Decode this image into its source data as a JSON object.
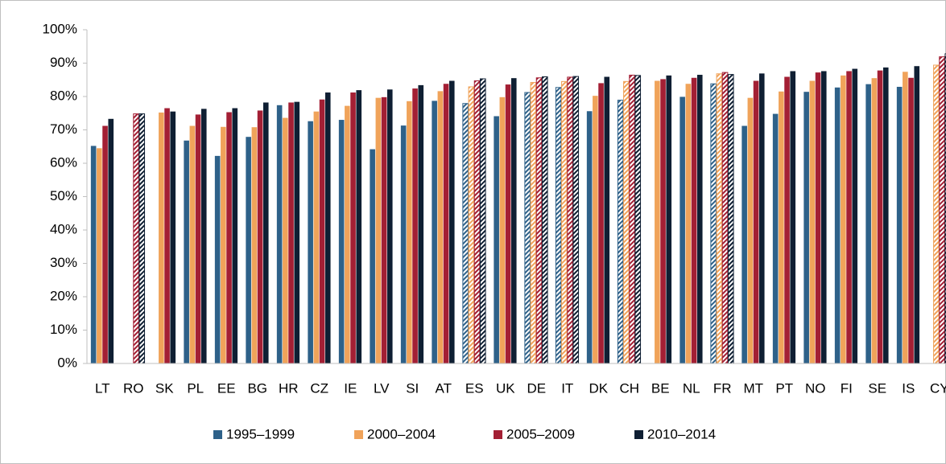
{
  "chart_data": {
    "type": "bar",
    "categories": [
      "LT",
      "RO",
      "SK",
      "PL",
      "EE",
      "BG",
      "HR",
      "CZ",
      "IE",
      "LV",
      "SI",
      "AT",
      "ES",
      "UK",
      "DE",
      "IT",
      "DK",
      "CH",
      "BE",
      "NL",
      "FR",
      "MT",
      "PT",
      "NO",
      "FI",
      "SE",
      "IS",
      "CY"
    ],
    "series": [
      {
        "name": "1995–1999",
        "color": "#2e6189",
        "values": [
          65.2,
          null,
          null,
          66.8,
          62.2,
          67.9,
          77.4,
          72.6,
          73.0,
          64.2,
          71.3,
          78.7,
          77.9,
          74.1,
          81.2,
          82.7,
          75.6,
          78.9,
          null,
          79.9,
          83.8,
          71.2,
          74.8,
          81.4,
          82.7,
          83.7,
          82.9,
          null
        ],
        "hatched": [
          false,
          false,
          false,
          false,
          false,
          false,
          false,
          false,
          false,
          false,
          false,
          false,
          true,
          false,
          true,
          true,
          false,
          true,
          false,
          false,
          true,
          false,
          false,
          false,
          false,
          false,
          false,
          false
        ]
      },
      {
        "name": "2000–2004",
        "color": "#f0a35a",
        "values": [
          64.5,
          null,
          75.2,
          71.2,
          70.9,
          70.8,
          73.6,
          75.5,
          77.2,
          79.6,
          78.6,
          81.6,
          82.9,
          79.8,
          84.2,
          84.5,
          80.2,
          84.5,
          84.7,
          83.8,
          86.8,
          79.6,
          81.5,
          84.7,
          86.3,
          85.5,
          87.4,
          89.4
        ],
        "hatched": [
          false,
          false,
          false,
          false,
          false,
          false,
          false,
          false,
          false,
          false,
          false,
          false,
          true,
          false,
          true,
          true,
          false,
          true,
          false,
          false,
          true,
          false,
          false,
          false,
          false,
          false,
          false,
          true
        ]
      },
      {
        "name": "2005–2009",
        "color": "#a31f34",
        "values": [
          71.2,
          74.8,
          76.5,
          74.6,
          75.3,
          75.8,
          78.2,
          79.1,
          81.2,
          79.8,
          82.4,
          83.8,
          84.7,
          83.6,
          85.6,
          85.8,
          84.0,
          86.4,
          85.2,
          85.6,
          87.2,
          84.7,
          85.9,
          87.2,
          87.6,
          87.8,
          85.6,
          91.9
        ],
        "hatched": [
          false,
          true,
          false,
          false,
          false,
          false,
          false,
          false,
          false,
          false,
          false,
          false,
          true,
          false,
          true,
          true,
          false,
          true,
          false,
          false,
          true,
          false,
          false,
          false,
          false,
          false,
          false,
          true
        ]
      },
      {
        "name": "2010–2014",
        "color": "#0f1f33",
        "values": [
          73.3,
          74.8,
          75.5,
          76.3,
          76.5,
          78.2,
          78.4,
          81.2,
          81.9,
          82.1,
          83.4,
          84.7,
          85.3,
          85.5,
          85.9,
          86.0,
          85.9,
          86.3,
          86.3,
          86.5,
          86.6,
          86.9,
          87.6,
          87.6,
          88.3,
          88.7,
          89.1,
          92.8
        ],
        "hatched": [
          false,
          true,
          false,
          false,
          false,
          false,
          false,
          false,
          false,
          false,
          false,
          false,
          true,
          false,
          true,
          true,
          false,
          true,
          false,
          false,
          true,
          false,
          false,
          false,
          false,
          false,
          false,
          true
        ]
      }
    ],
    "ylim": [
      0,
      100
    ],
    "yticks": [
      {
        "value": 0,
        "label": "0%"
      },
      {
        "value": 10,
        "label": "10%"
      },
      {
        "value": 20,
        "label": "20%"
      },
      {
        "value": 30,
        "label": "30%"
      },
      {
        "value": 40,
        "label": "40%"
      },
      {
        "value": 50,
        "label": "50%"
      },
      {
        "value": 60,
        "label": "60%"
      },
      {
        "value": 70,
        "label": "70%"
      },
      {
        "value": 80,
        "label": "80%"
      },
      {
        "value": 90,
        "label": "90%"
      },
      {
        "value": 100,
        "label": "100%"
      }
    ],
    "grid": false,
    "legend": "bottom"
  }
}
